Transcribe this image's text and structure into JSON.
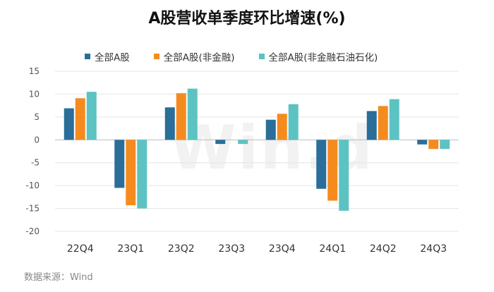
{
  "chart_data": {
    "type": "bar",
    "title": "A股营收单季度环比增速(%)",
    "categories": [
      "22Q4",
      "23Q1",
      "23Q2",
      "23Q3",
      "23Q4",
      "24Q1",
      "24Q2",
      "24Q3"
    ],
    "series": [
      {
        "name": "全部A股",
        "color": "#2a6e99",
        "values": [
          6.9,
          -10.5,
          7.1,
          -0.9,
          4.4,
          -10.7,
          6.3,
          -1.0
        ]
      },
      {
        "name": "全部A股(非金融)",
        "color": "#f58b1f",
        "values": [
          9.1,
          -14.3,
          10.2,
          0.0,
          5.7,
          -13.3,
          7.4,
          -2.0
        ]
      },
      {
        "name": "全部A股(非金融石油石化)",
        "color": "#5cc3c2",
        "values": [
          10.5,
          -15.0,
          11.2,
          -0.9,
          7.8,
          -15.5,
          8.9,
          -2.0
        ]
      }
    ],
    "yticks": [
      15,
      10,
      5,
      0,
      -5,
      -10,
      -15,
      -20
    ],
    "ytick_labels": [
      "15",
      "10",
      "5",
      "0",
      "-5",
      "-10",
      "-15",
      "-20"
    ],
    "ylim": [
      -20,
      15
    ],
    "grid": true,
    "legend": "top-center"
  },
  "watermark": "Win.d",
  "source": "数据来源：Wind"
}
